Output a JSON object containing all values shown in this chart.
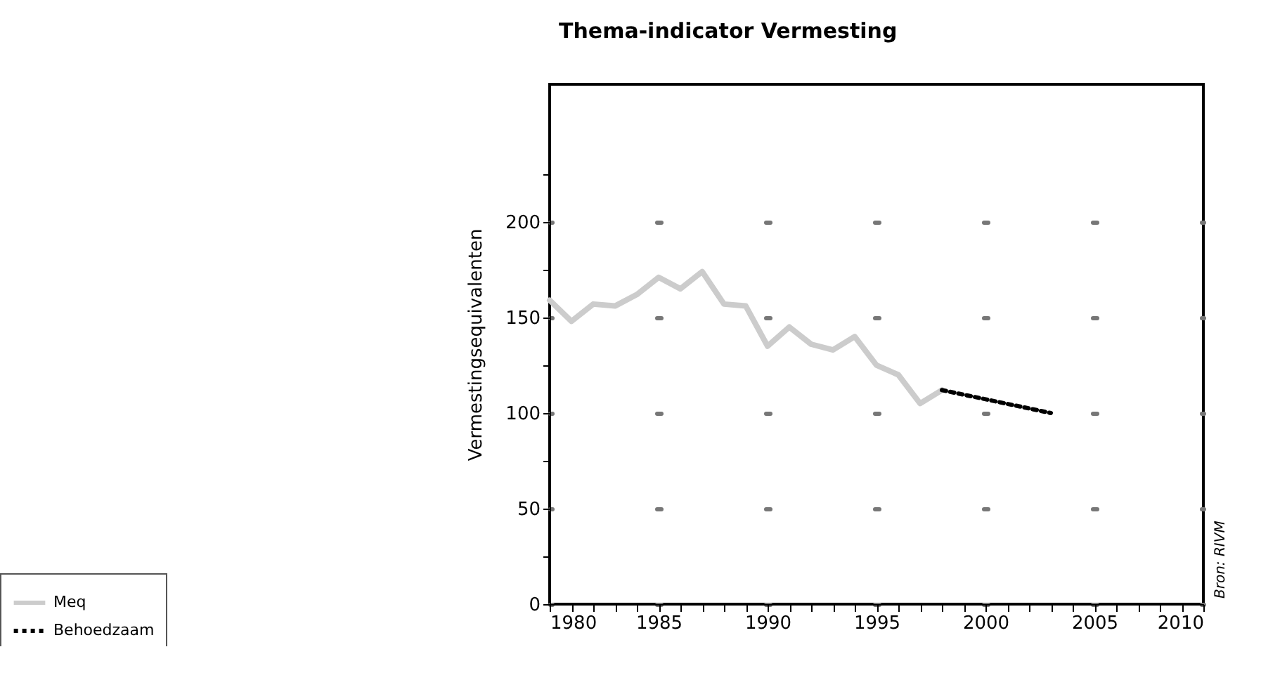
{
  "chart_data": {
    "type": "line",
    "title": "Thema-indicator Vermesting",
    "ylabel": "Vermestingsequivalenten",
    "xlim": [
      1980,
      2010
    ],
    "ylim": [
      0,
      272
    ],
    "xticks": [
      1980,
      {
        "value": 1981,
        "label": null
      },
      {
        "value": 1982,
        "label": null
      },
      {
        "value": 1983,
        "label": null
      },
      {
        "value": 1984,
        "label": null
      },
      1985,
      {
        "value": 1986,
        "label": null
      },
      {
        "value": 1987,
        "label": null
      },
      {
        "value": 1988,
        "label": null
      },
      {
        "value": 1989,
        "label": null
      },
      1990,
      {
        "value": 1991,
        "label": null
      },
      {
        "value": 1992,
        "label": null
      },
      {
        "value": 1993,
        "label": null
      },
      {
        "value": 1994,
        "label": null
      },
      1995,
      {
        "value": 1996,
        "label": null
      },
      {
        "value": 1997,
        "label": null
      },
      {
        "value": 1998,
        "label": null
      },
      {
        "value": 1999,
        "label": null
      },
      2000,
      {
        "value": 2001,
        "label": null
      },
      {
        "value": 2002,
        "label": null
      },
      {
        "value": 2003,
        "label": null
      },
      {
        "value": 2004,
        "label": null
      },
      2005,
      {
        "value": 2006,
        "label": null
      },
      {
        "value": 2007,
        "label": null
      },
      {
        "value": 2008,
        "label": null
      },
      {
        "value": 2009,
        "label": null
      },
      2010
    ],
    "yticks": [
      0,
      {
        "value": 25,
        "label": null
      },
      50,
      {
        "value": 75,
        "label": null
      },
      100,
      {
        "value": 125,
        "label": null
      },
      150,
      {
        "value": 175,
        "label": null
      },
      200,
      {
        "value": 225,
        "label": null
      }
    ],
    "grid": "y",
    "legend": "bottom left",
    "series": [
      {
        "name": "Meq",
        "color": "#cccccc",
        "line_style": "solid",
        "x": [
          1980,
          1981,
          1982,
          1983,
          1984,
          1985,
          1986,
          1987,
          1988,
          1989,
          1990,
          1991,
          1992,
          1993,
          1994,
          1995,
          1996,
          1997,
          1998
        ],
        "values": [
          159,
          148,
          157,
          156,
          162,
          171,
          165,
          174,
          157,
          156,
          135,
          145,
          136,
          133,
          140,
          125,
          120,
          105,
          112
        ]
      },
      {
        "name": "Behoedzaam",
        "color": "#000000",
        "line_style": "dotted",
        "x": [
          1998,
          2003
        ],
        "values": [
          112,
          100
        ]
      }
    ],
    "annotations": [
      "Bron: RIVM"
    ]
  }
}
